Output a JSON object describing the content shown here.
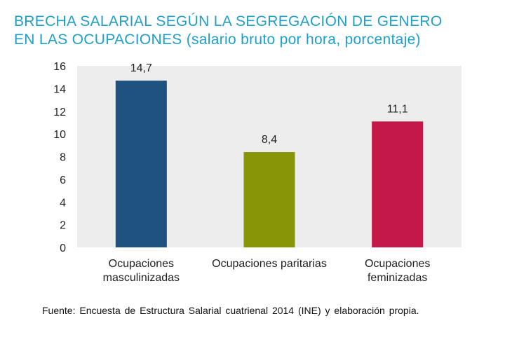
{
  "title": {
    "line1": "BRECHA SALARIAL SEGÚN LA SEGREGACIÓN DE GENERO",
    "line2": "EN LAS OCUPACIONES (salario bruto por hora, porcentaje)"
  },
  "chart_data": {
    "type": "bar",
    "title": "BRECHA SALARIAL SEGÚN LA SEGREGACIÓN DE GENERO EN LAS OCUPACIONES (salario bruto por hora, porcentaje)",
    "categories": [
      [
        "Ocupaciones",
        "masculinizadas"
      ],
      [
        "Ocupaciones paritarias"
      ],
      [
        "Ocupaciones",
        "feminizadas"
      ]
    ],
    "values": [
      14.7,
      8.4,
      11.1
    ],
    "value_labels": [
      "14,7",
      "8,4",
      "11,1"
    ],
    "colors": [
      "#1f5181",
      "#869607",
      "#c41849"
    ],
    "ylim": [
      0,
      16
    ],
    "yticks": [
      0,
      2,
      4,
      6,
      8,
      10,
      12,
      14,
      16
    ],
    "xlabel": "",
    "ylabel": "",
    "grid": false,
    "plot_background": "#ededed"
  },
  "source": "Fuente: Encuesta de Estructura Salarial cuatrienal 2014 (INE) y elaboración propia."
}
